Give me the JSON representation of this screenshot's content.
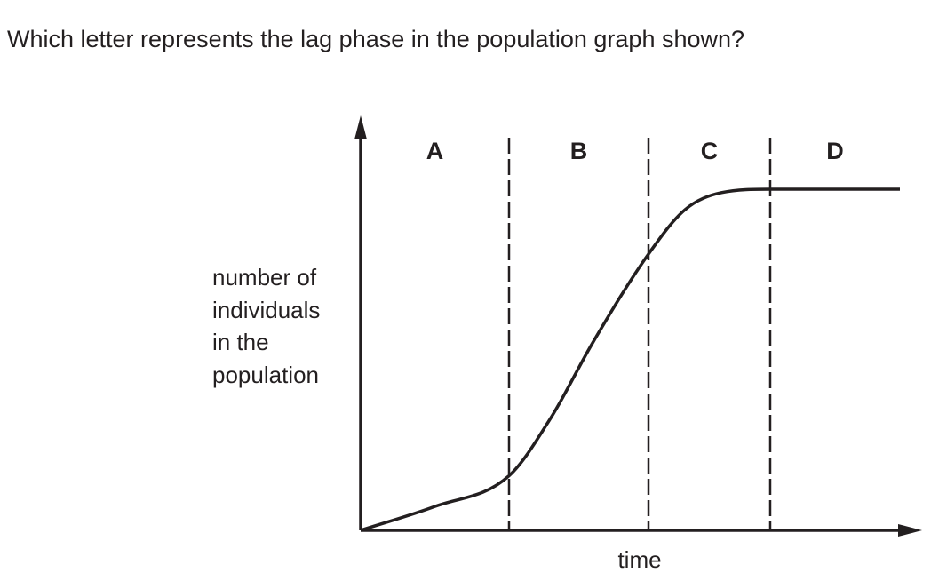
{
  "question": "Which letter represents the lag phase in the population graph shown?",
  "chart_data": {
    "type": "line",
    "title": "",
    "xlabel": "time",
    "ylabel_lines": [
      "number of",
      "individuals",
      "in the",
      "population"
    ],
    "regions": [
      "A",
      "B",
      "C",
      "D"
    ],
    "region_boundaries": [
      0,
      1,
      2,
      3,
      4
    ],
    "xlim": [
      0,
      4
    ],
    "ylim": [
      0,
      1.0
    ],
    "series": [
      {
        "x": [
          0,
          0.5,
          1.0,
          1.3,
          1.6,
          2.0,
          2.3,
          2.6,
          3.0,
          4.0
        ],
        "y": [
          0,
          0.07,
          0.16,
          0.33,
          0.55,
          0.81,
          0.94,
          0.99,
          1.0,
          1.0
        ]
      }
    ],
    "grid": false,
    "legend": "none"
  }
}
